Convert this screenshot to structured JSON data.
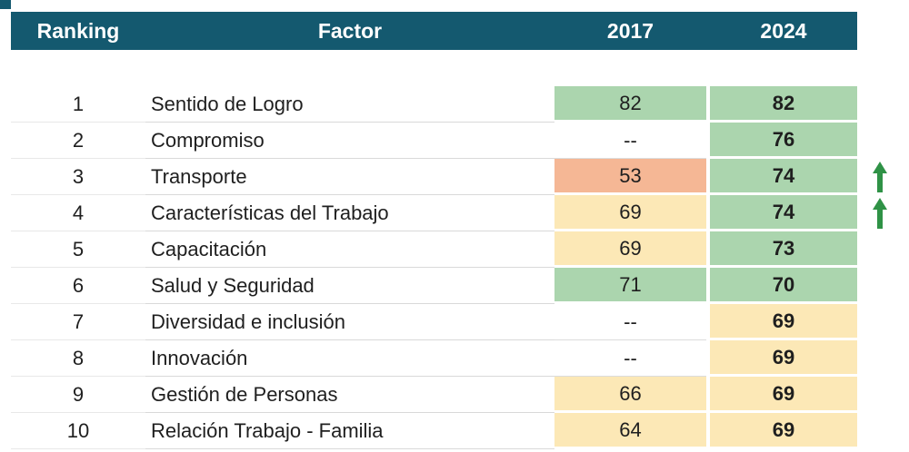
{
  "chart_data": {
    "type": "table",
    "title": "",
    "columns": [
      "Ranking",
      "Factor",
      "2017",
      "2024"
    ],
    "rows": [
      {
        "ranking": "1",
        "factor": "Sentido de Logro",
        "y2017": "82",
        "y2024": "82",
        "color2017": "green",
        "color2024": "green",
        "arrow": false
      },
      {
        "ranking": "2",
        "factor": "Compromiso",
        "y2017": "--",
        "y2024": "76",
        "color2017": "none",
        "color2024": "green",
        "arrow": false
      },
      {
        "ranking": "3",
        "factor": "Transporte",
        "y2017": "53",
        "y2024": "74",
        "color2017": "salmon",
        "color2024": "green",
        "arrow": true
      },
      {
        "ranking": "4",
        "factor": "Características del Trabajo",
        "y2017": "69",
        "y2024": "74",
        "color2017": "yellow",
        "color2024": "green",
        "arrow": true
      },
      {
        "ranking": "5",
        "factor": "Capacitación",
        "y2017": "69",
        "y2024": "73",
        "color2017": "yellow",
        "color2024": "green",
        "arrow": false
      },
      {
        "ranking": "6",
        "factor": "Salud y Seguridad",
        "y2017": "71",
        "y2024": "70",
        "color2017": "green",
        "color2024": "green",
        "arrow": false
      },
      {
        "ranking": "7",
        "factor": "Diversidad e inclusión",
        "y2017": "--",
        "y2024": "69",
        "color2017": "none",
        "color2024": "yellow",
        "arrow": false
      },
      {
        "ranking": "8",
        "factor": "Innovación",
        "y2017": "--",
        "y2024": "69",
        "color2017": "none",
        "color2024": "yellow",
        "arrow": false
      },
      {
        "ranking": "9",
        "factor": "Gestión de Personas",
        "y2017": "66",
        "y2024": "69",
        "color2017": "yellow",
        "color2024": "yellow",
        "arrow": false
      },
      {
        "ranking": "10",
        "factor": "Relación Trabajo - Familia",
        "y2017": "64",
        "y2024": "69",
        "color2017": "yellow",
        "color2024": "yellow",
        "arrow": false
      }
    ],
    "legend_position": "none",
    "grid": "row-separators"
  },
  "header": {
    "ranking_label": "Ranking",
    "factor_label": "Factor",
    "col_2017": "2017",
    "col_2024": "2024"
  },
  "icons": {
    "up_arrow": "increase-indicator"
  },
  "colors": {
    "header_bg": "#14596F",
    "header_text": "#ffffff",
    "green": "#ABD5AE",
    "yellow": "#FCE8B6",
    "salmon": "#F5B795",
    "none": "#FFFFFF",
    "arrow_green": "#2F9246",
    "row_line": "#D9D9D9"
  }
}
